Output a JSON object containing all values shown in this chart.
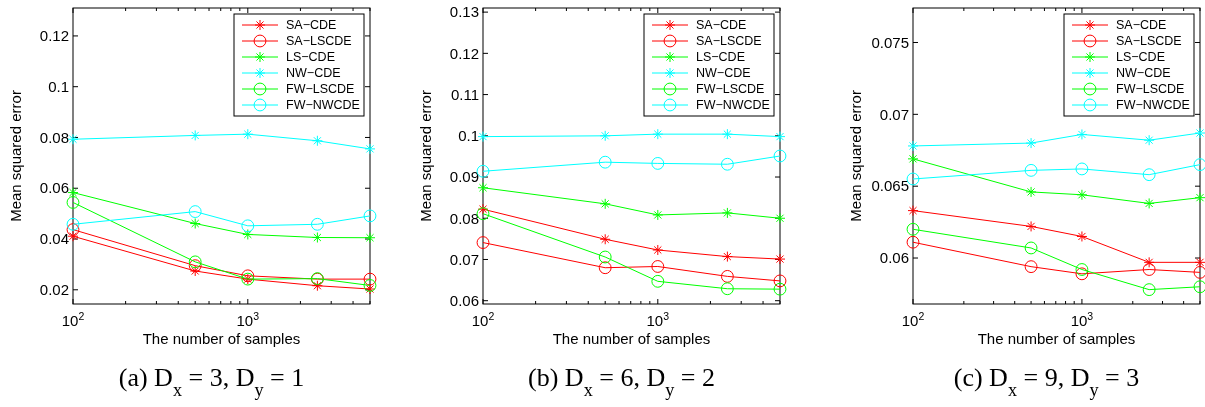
{
  "chart_data": [
    {
      "type": "line",
      "title": "(a) D$_{x}$ = 3, D$_{y}$ = 1",
      "xlabel": "The number of samples",
      "ylabel": "Mean squared error",
      "log": "x",
      "x": [
        100,
        500,
        1000,
        2500,
        5000
      ],
      "xlim": [
        100,
        5000
      ],
      "xticks": [
        {
          "value": 100,
          "label": "10$^{2}$"
        },
        {
          "value": 200,
          "label": null
        },
        {
          "value": 300,
          "label": null
        },
        {
          "value": 400,
          "label": null
        },
        {
          "value": 500,
          "label": null
        },
        {
          "value": 600,
          "label": null
        },
        {
          "value": 700,
          "label": null
        },
        {
          "value": 800,
          "label": null
        },
        {
          "value": 900,
          "label": null
        },
        {
          "value": 1000,
          "label": "10$^{3}$"
        },
        {
          "value": 2000,
          "label": null
        },
        {
          "value": 3000,
          "label": null
        },
        {
          "value": 4000,
          "label": null
        },
        {
          "value": 5000,
          "label": null
        }
      ],
      "ylim": [
        0.0144,
        0.131
      ],
      "yticks": [
        0.02,
        0.04,
        0.06,
        0.08,
        0.1,
        0.12
      ],
      "legend": "top right",
      "grid": false,
      "series": [
        {
          "name": "SA−CDE",
          "color": "#ff0000",
          "marker": "cross",
          "values": [
            0.0411,
            0.0274,
            0.0242,
            0.0216,
            0.0203
          ]
        },
        {
          "name": "SA−LSCDE",
          "color": "#ff0000",
          "marker": "circle",
          "values": [
            0.0437,
            0.0295,
            0.0255,
            0.0242,
            0.0242
          ]
        },
        {
          "name": "LS−CDE",
          "color": "#00ff00",
          "marker": "cross",
          "values": [
            0.0583,
            0.0461,
            0.0418,
            0.0406,
            0.0405
          ]
        },
        {
          "name": "NW−CDE",
          "color": "#00ffff",
          "marker": "cross",
          "values": [
            0.0793,
            0.0808,
            0.0813,
            0.0787,
            0.0755
          ]
        },
        {
          "name": "FW−LSCDE",
          "color": "#00ff00",
          "marker": "circle",
          "values": [
            0.0544,
            0.031,
            0.0242,
            0.0244,
            0.0217
          ]
        },
        {
          "name": "FW−NWCDE",
          "color": "#00ffff",
          "marker": "circle",
          "values": [
            0.0458,
            0.0508,
            0.0452,
            0.0458,
            0.0491
          ]
        }
      ]
    },
    {
      "type": "line",
      "title": "(b) D$_{x}$ = 6, D$_{y}$ = 2",
      "xlabel": "The number of samples",
      "ylabel": "Mean squared error",
      "log": "x",
      "x": [
        100,
        500,
        1000,
        2500,
        5000
      ],
      "xlim": [
        100,
        5000
      ],
      "xticks": [
        {
          "value": 100,
          "label": "10$^{2}$"
        },
        {
          "value": 200,
          "label": null
        },
        {
          "value": 300,
          "label": null
        },
        {
          "value": 400,
          "label": null
        },
        {
          "value": 500,
          "label": null
        },
        {
          "value": 600,
          "label": null
        },
        {
          "value": 700,
          "label": null
        },
        {
          "value": 800,
          "label": null
        },
        {
          "value": 900,
          "label": null
        },
        {
          "value": 1000,
          "label": "10$^{3}$"
        },
        {
          "value": 2000,
          "label": null
        },
        {
          "value": 3000,
          "label": null
        },
        {
          "value": 4000,
          "label": null
        },
        {
          "value": 5000,
          "label": null
        }
      ],
      "ylim": [
        0.0592,
        0.131
      ],
      "yticks": [
        0.06,
        0.07,
        0.08,
        0.09,
        0.1,
        0.11,
        0.12,
        0.13
      ],
      "legend": "top right",
      "grid": false,
      "series": [
        {
          "name": "SA−CDE",
          "color": "#ff0000",
          "marker": "cross",
          "values": [
            0.0822,
            0.0749,
            0.0723,
            0.0707,
            0.0701
          ]
        },
        {
          "name": "SA−LSCDE",
          "color": "#ff0000",
          "marker": "circle",
          "values": [
            0.0741,
            0.068,
            0.0683,
            0.0659,
            0.0648
          ]
        },
        {
          "name": "LS−CDE",
          "color": "#00ff00",
          "marker": "cross",
          "values": [
            0.0874,
            0.0835,
            0.0808,
            0.0813,
            0.08
          ]
        },
        {
          "name": "NW−CDE",
          "color": "#00ffff",
          "marker": "cross",
          "values": [
            0.0998,
            0.1,
            0.1004,
            0.1004,
            0.0998
          ]
        },
        {
          "name": "FW−LSCDE",
          "color": "#00ff00",
          "marker": "circle",
          "values": [
            0.0811,
            0.0706,
            0.0647,
            0.0629,
            0.0628
          ]
        },
        {
          "name": "FW−NWCDE",
          "color": "#00ffff",
          "marker": "circle",
          "values": [
            0.0914,
            0.0936,
            0.0933,
            0.0931,
            0.0951
          ]
        }
      ]
    },
    {
      "type": "line",
      "title": "(c) D$_{x}$ = 9, D$_{y}$ = 3",
      "xlabel": "The number of samples",
      "ylabel": "Mean squared error",
      "log": "x",
      "x": [
        100,
        500,
        1000,
        2500,
        5000
      ],
      "xlim": [
        100,
        5000
      ],
      "xticks": [
        {
          "value": 100,
          "label": "10$^{2}$"
        },
        {
          "value": 200,
          "label": null
        },
        {
          "value": 300,
          "label": null
        },
        {
          "value": 400,
          "label": null
        },
        {
          "value": 500,
          "label": null
        },
        {
          "value": 600,
          "label": null
        },
        {
          "value": 700,
          "label": null
        },
        {
          "value": 800,
          "label": null
        },
        {
          "value": 900,
          "label": null
        },
        {
          "value": 1000,
          "label": "10$^{3}$"
        },
        {
          "value": 2000,
          "label": null
        },
        {
          "value": 3000,
          "label": null
        },
        {
          "value": 4000,
          "label": null
        },
        {
          "value": 5000,
          "label": null
        }
      ],
      "ylim": [
        0.0568,
        0.0774
      ],
      "yticks": [
        0.06,
        0.065,
        0.07,
        0.075
      ],
      "legend": "top right",
      "grid": false,
      "series": [
        {
          "name": "SA−CDE",
          "color": "#ff0000",
          "marker": "cross",
          "values": [
            0.0633,
            0.0622,
            0.0615,
            0.0597,
            0.0597
          ]
        },
        {
          "name": "SA−LSCDE",
          "color": "#ff0000",
          "marker": "circle",
          "values": [
            0.0611,
            0.0594,
            0.0589,
            0.0592,
            0.059
          ]
        },
        {
          "name": "LS−CDE",
          "color": "#00ff00",
          "marker": "cross",
          "values": [
            0.0669,
            0.0646,
            0.0644,
            0.0638,
            0.0642
          ]
        },
        {
          "name": "NW−CDE",
          "color": "#00ffff",
          "marker": "cross",
          "values": [
            0.0678,
            0.068,
            0.0686,
            0.0682,
            0.0687
          ]
        },
        {
          "name": "FW−LSCDE",
          "color": "#00ff00",
          "marker": "circle",
          "values": [
            0.062,
            0.0607,
            0.0592,
            0.0578,
            0.058
          ]
        },
        {
          "name": "FW−NWCDE",
          "color": "#00ffff",
          "marker": "circle",
          "values": [
            0.0655,
            0.0661,
            0.0662,
            0.0658,
            0.0665
          ]
        }
      ]
    }
  ]
}
